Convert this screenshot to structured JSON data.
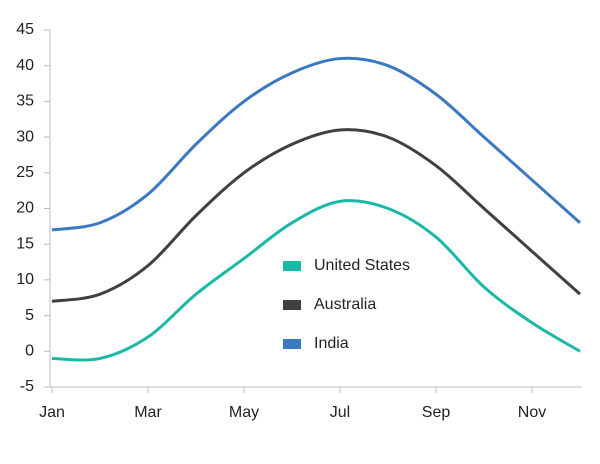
{
  "chart_data": {
    "type": "line",
    "categories": [
      "Jan",
      null,
      "Mar",
      null,
      "May",
      null,
      "Jul",
      null,
      "Sep",
      null,
      "Nov",
      null
    ],
    "series": [
      {
        "name": "United States",
        "color": "#1ab8a6",
        "values": [
          -1,
          -1,
          2,
          8,
          13,
          18,
          21,
          20,
          16,
          9,
          4,
          0
        ]
      },
      {
        "name": "Australia",
        "color": "#404041",
        "values": [
          7,
          8,
          12,
          19,
          25,
          29,
          31,
          30,
          26,
          20,
          14,
          8
        ]
      },
      {
        "name": "India",
        "color": "#3a79c2",
        "values": [
          17,
          18,
          22,
          29,
          35,
          39,
          41,
          40,
          36,
          30,
          24,
          18
        ]
      }
    ],
    "ylim": [
      -5,
      45
    ],
    "yticks": [
      -5,
      0,
      5,
      10,
      15,
      20,
      25,
      30,
      35,
      40,
      45
    ],
    "grid": false,
    "legend": "center"
  }
}
